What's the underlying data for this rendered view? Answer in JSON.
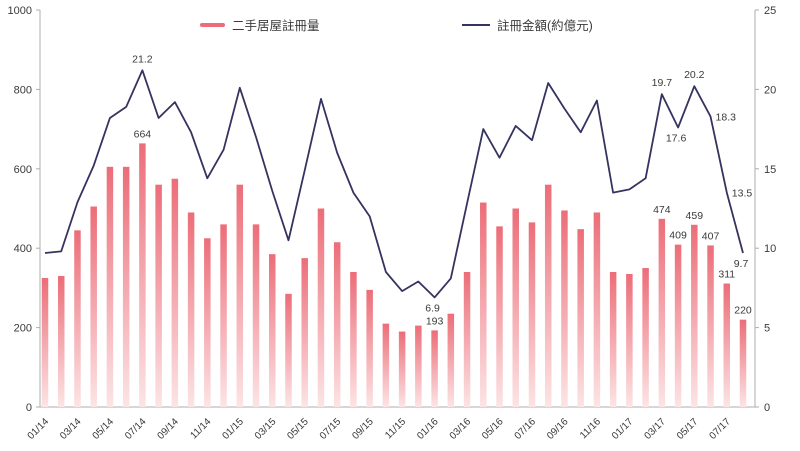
{
  "chart_data": {
    "type": "combo",
    "title": "",
    "categories": [
      "01/14",
      "02/14",
      "03/14",
      "04/14",
      "05/14",
      "06/14",
      "07/14",
      "08/14",
      "09/14",
      "10/14",
      "11/14",
      "12/14",
      "01/15",
      "02/15",
      "03/15",
      "04/15",
      "05/15",
      "06/15",
      "07/15",
      "08/15",
      "09/15",
      "10/15",
      "11/15",
      "12/15",
      "01/16",
      "02/16",
      "03/16",
      "04/16",
      "05/16",
      "06/16",
      "07/16",
      "08/16",
      "09/16",
      "10/16",
      "11/16",
      "12/16",
      "01/17",
      "02/17",
      "03/17",
      "04/17",
      "05/17",
      "06/17",
      "07/17",
      "08/17"
    ],
    "x_tick_interval": 2,
    "series": [
      {
        "name": "二手居屋註冊量",
        "type": "bar",
        "axis": "left",
        "values": [
          325,
          330,
          445,
          505,
          605,
          605,
          664,
          560,
          575,
          490,
          425,
          460,
          560,
          460,
          385,
          285,
          375,
          500,
          415,
          340,
          295,
          210,
          190,
          205,
          193,
          235,
          340,
          515,
          455,
          500,
          465,
          560,
          495,
          448,
          490,
          340,
          335,
          350,
          474,
          409,
          459,
          407,
          311,
          220
        ]
      },
      {
        "name": "註冊金額(約億元)",
        "type": "line",
        "axis": "right",
        "values": [
          9.7,
          9.8,
          12.9,
          15.2,
          18.2,
          18.9,
          21.2,
          18.2,
          19.2,
          17.3,
          14.4,
          16.2,
          20.1,
          17.0,
          13.6,
          10.5,
          14.9,
          19.4,
          16.0,
          13.5,
          12.0,
          8.5,
          7.3,
          7.9,
          6.9,
          8.1,
          12.8,
          17.5,
          15.7,
          17.7,
          16.8,
          20.4,
          18.8,
          17.3,
          19.3,
          13.5,
          13.7,
          14.4,
          19.7,
          17.6,
          20.2,
          18.3,
          13.5,
          9.7
        ]
      }
    ],
    "left_axis": {
      "min": 0,
      "max": 1000,
      "ticks": [
        0,
        200,
        400,
        600,
        800,
        1000
      ]
    },
    "right_axis": {
      "min": 0,
      "max": 25,
      "ticks": [
        0,
        5,
        10,
        15,
        20,
        25
      ]
    },
    "point_labels": {
      "bar": [
        {
          "index": 6,
          "text": "664"
        },
        {
          "index": 24,
          "text": "193"
        },
        {
          "index": 38,
          "text": "474"
        },
        {
          "index": 39,
          "text": "409"
        },
        {
          "index": 40,
          "text": "459"
        },
        {
          "index": 41,
          "text": "407"
        },
        {
          "index": 42,
          "text": "311"
        },
        {
          "index": 43,
          "text": "220"
        }
      ],
      "line": [
        {
          "index": 6,
          "text": "21.2",
          "pos": "above"
        },
        {
          "index": 24,
          "text": "6.9",
          "pos": "below"
        },
        {
          "index": 38,
          "text": "19.7",
          "pos": "above"
        },
        {
          "index": 39,
          "text": "17.6",
          "pos": "below"
        },
        {
          "index": 40,
          "text": "20.2",
          "pos": "above"
        },
        {
          "index": 41,
          "text": "18.3",
          "pos": "right"
        },
        {
          "index": 42,
          "text": "13.5",
          "pos": "right"
        },
        {
          "index": 43,
          "text": "9.7",
          "pos": "below"
        }
      ]
    },
    "legend": {
      "position": "top",
      "grid": "off"
    }
  },
  "legend": {
    "bar_label": "二手居屋註冊量",
    "line_label": "註冊金額(約億元)"
  },
  "colors": {
    "bar_top": "#ec6d78",
    "bar_bottom": "#fce4e5",
    "line": "#35335f",
    "axis": "#aeaeae",
    "text": "#3a3a3a"
  }
}
